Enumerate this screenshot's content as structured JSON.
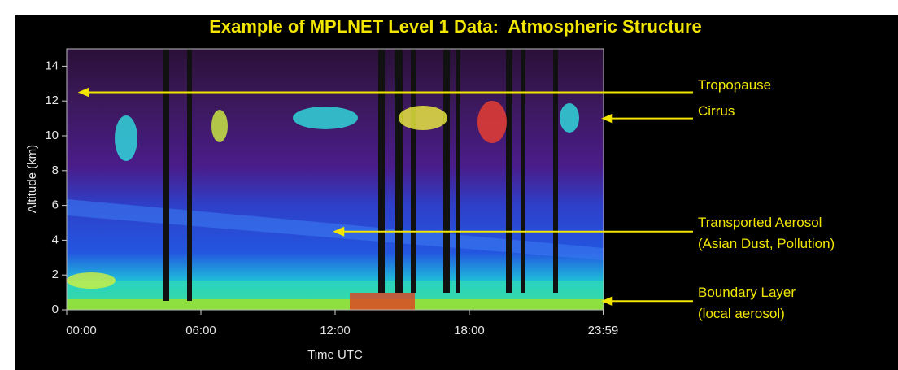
{
  "chart_data": {
    "type": "lidar",
    "title": "Example of MPLNET Level 1 Data:  Atmospheric Structure",
    "x_label": "Time UTC",
    "y_label": "Altitude (km)",
    "xlim": [
      0,
      24
    ],
    "ylim": [
      0,
      15
    ],
    "xticks": [
      {
        "value": 0,
        "label": "00:00"
      },
      {
        "value": 6,
        "label": "06:00"
      },
      {
        "value": 12,
        "label": "12:00"
      },
      {
        "value": 18,
        "label": "18:00"
      },
      {
        "value": 23.98,
        "label": "23:59"
      }
    ],
    "yticks": [
      0,
      2,
      4,
      6,
      8,
      10,
      12,
      14
    ],
    "annotations": [
      {
        "lines": [
          "Tropopause"
        ],
        "y": 12.5,
        "x": 0.5
      },
      {
        "lines": [
          "Cirrus"
        ],
        "y": 11,
        "x": 23.9
      },
      {
        "lines": [
          "Transported Aerosol",
          "(Asian Dust, Pollution)"
        ],
        "y": 4.5,
        "x": 11.9
      },
      {
        "lines": [
          "Boundary Layer",
          "(local aerosol)"
        ],
        "y": 0.5,
        "x": 23.9
      }
    ],
    "annotation_color": "#f2e600"
  }
}
